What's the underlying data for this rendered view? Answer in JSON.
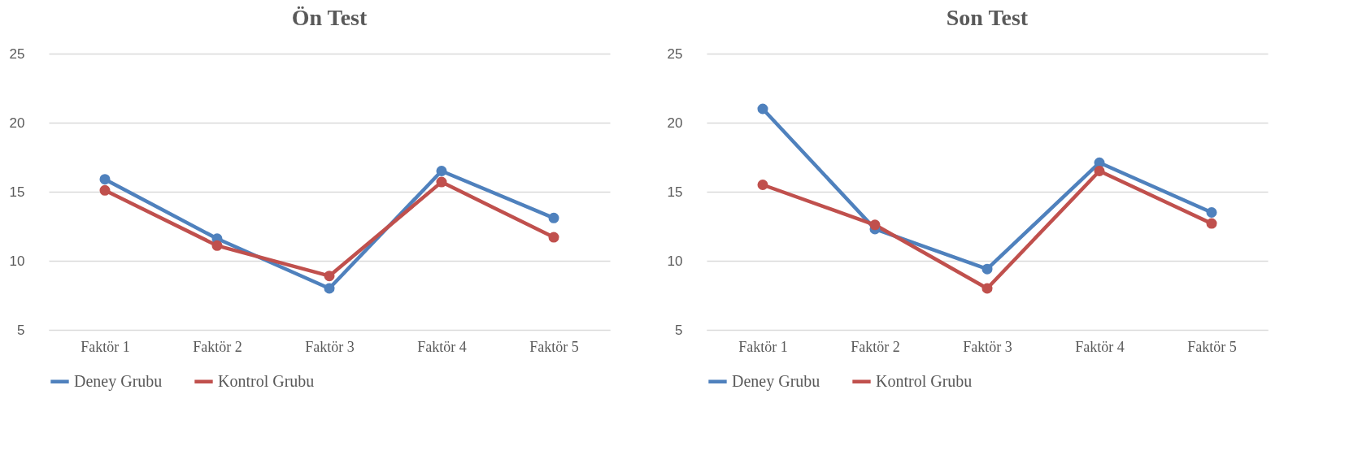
{
  "chart_data": [
    {
      "type": "line",
      "title": "Ön Test",
      "categories": [
        "Faktör 1",
        "Faktör 2",
        "Faktör 3",
        "Faktör 4",
        "Faktör 5"
      ],
      "series": [
        {
          "name": "Deney Grubu",
          "color": "#4f81bd",
          "values": [
            15.9,
            11.6,
            8.0,
            16.5,
            13.1
          ]
        },
        {
          "name": "Kontrol Grubu",
          "color": "#c0504d",
          "values": [
            15.1,
            11.1,
            8.9,
            15.7,
            11.7
          ]
        }
      ],
      "ylim": [
        5,
        25
      ],
      "yticks": [
        5,
        10,
        15,
        20,
        25
      ],
      "grid": "y",
      "legend": "bottom",
      "marker": "circle"
    },
    {
      "type": "line",
      "title": "Son Test",
      "categories": [
        "Faktör 1",
        "Faktör 2",
        "Faktör 3",
        "Faktör 4",
        "Faktör 5"
      ],
      "series": [
        {
          "name": "Deney Grubu",
          "color": "#4f81bd",
          "values": [
            21.0,
            12.3,
            9.4,
            17.1,
            13.5
          ]
        },
        {
          "name": "Kontrol Grubu",
          "color": "#c0504d",
          "values": [
            15.5,
            12.6,
            8.0,
            16.5,
            12.7
          ]
        }
      ],
      "ylim": [
        5,
        25
      ],
      "yticks": [
        5,
        10,
        15,
        20,
        25
      ],
      "grid": "y",
      "legend": "bottom",
      "marker": "circle"
    }
  ]
}
